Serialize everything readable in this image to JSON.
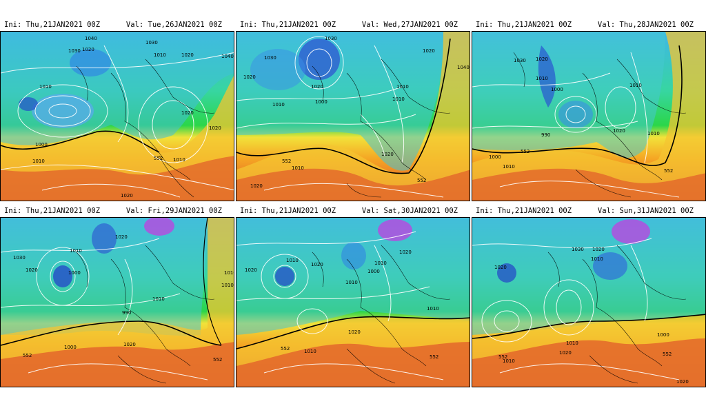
{
  "panels": [
    {
      "ini": "Ini: Thu,21JAN2021  00Z",
      "val": "Val:  Tue,26JAN2021  00Z",
      "labels": [
        "1040",
        "1030",
        "1020",
        "1030",
        "1010",
        "1020",
        "1010",
        "1000",
        "1010",
        "1020",
        "1020",
        "1010",
        "552",
        "1020",
        "1040"
      ]
    },
    {
      "ini": "Ini: Thu,21JAN2021  00Z",
      "val": "Val:  Wed,27JAN2021  00Z",
      "labels": [
        "1030",
        "1030",
        "1020",
        "1020",
        "1010",
        "1000",
        "1010",
        "1020",
        "1040",
        "1010",
        "552",
        "1010",
        "1020",
        "1020",
        "552"
      ]
    },
    {
      "ini": "Ini: Thu,21JAN2021  00Z",
      "val": "Val:  Thu,28JAN2021  00Z",
      "labels": [
        "1030",
        "1020",
        "1010",
        "1000",
        "1010",
        "990",
        "1020",
        "552",
        "1000",
        "1010",
        "552",
        "1010"
      ]
    },
    {
      "ini": "Ini: Thu,21JAN2021  00Z",
      "val": "Val:  Fri,29JAN2021  00Z",
      "labels": [
        "1030",
        "1020",
        "1020",
        "1010",
        "1000",
        "1010",
        "990",
        "1010",
        "1000",
        "1020",
        "552",
        "552",
        "1010"
      ]
    },
    {
      "ini": "Ini: Thu,21JAN2021  00Z",
      "val": "Val:  Sat,30JAN2021  00Z",
      "labels": [
        "1020",
        "1010",
        "1020",
        "1010",
        "1000",
        "1020",
        "1010",
        "1010",
        "552",
        "1010",
        "1020",
        "552"
      ]
    },
    {
      "ini": "Ini: Thu,21JAN2021  00Z",
      "val": "Val:  Sun,31JAN2021  00Z",
      "labels": [
        "1030",
        "1020",
        "1020",
        "1010",
        "1010",
        "1000",
        "552",
        "1010",
        "1020",
        "552",
        "1020"
      ]
    }
  ]
}
